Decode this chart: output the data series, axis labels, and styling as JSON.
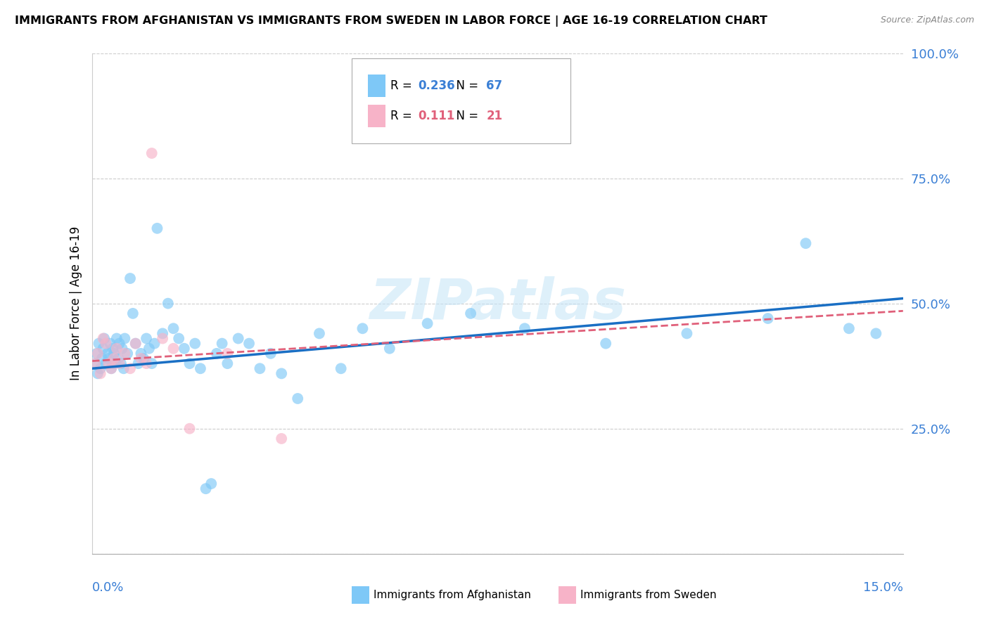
{
  "title": "IMMIGRANTS FROM AFGHANISTAN VS IMMIGRANTS FROM SWEDEN IN LABOR FORCE | AGE 16-19 CORRELATION CHART",
  "source": "Source: ZipAtlas.com",
  "ylabel": "In Labor Force | Age 16-19",
  "xlim": [
    0.0,
    15.0
  ],
  "ylim": [
    0.0,
    100.0
  ],
  "yticks": [
    0.0,
    25.0,
    50.0,
    75.0,
    100.0
  ],
  "ytick_labels": [
    "",
    "25.0%",
    "50.0%",
    "75.0%",
    "100.0%"
  ],
  "legend_r_afg": "0.236",
  "legend_n_afg": "67",
  "legend_r_swe": "0.111",
  "legend_n_swe": "21",
  "color_afg": "#7ec8f7",
  "color_swe": "#f7b3c8",
  "color_afg_line": "#1a6fc4",
  "color_swe_line": "#e0607a",
  "watermark": "ZIPatlas",
  "afg_x": [
    0.05,
    0.08,
    0.1,
    0.12,
    0.15,
    0.18,
    0.2,
    0.22,
    0.25,
    0.28,
    0.3,
    0.33,
    0.35,
    0.38,
    0.4,
    0.42,
    0.45,
    0.48,
    0.5,
    0.53,
    0.55,
    0.58,
    0.6,
    0.65,
    0.7,
    0.75,
    0.8,
    0.85,
    0.9,
    0.95,
    1.0,
    1.05,
    1.1,
    1.15,
    1.2,
    1.3,
    1.4,
    1.5,
    1.6,
    1.7,
    1.8,
    1.9,
    2.0,
    2.1,
    2.2,
    2.3,
    2.4,
    2.5,
    2.7,
    2.9,
    3.1,
    3.3,
    3.5,
    3.8,
    4.2,
    4.6,
    5.0,
    5.5,
    6.2,
    7.0,
    8.0,
    9.5,
    11.0,
    12.5,
    13.2,
    14.0,
    14.5
  ],
  "afg_y": [
    38,
    40,
    36,
    42,
    37,
    39,
    41,
    43,
    38,
    40,
    39,
    42,
    37,
    41,
    40,
    38,
    43,
    39,
    42,
    38,
    41,
    37,
    43,
    40,
    55,
    48,
    42,
    38,
    40,
    39,
    43,
    41,
    38,
    42,
    65,
    44,
    50,
    45,
    43,
    41,
    38,
    42,
    37,
    13,
    14,
    40,
    42,
    38,
    43,
    42,
    37,
    40,
    36,
    31,
    44,
    37,
    45,
    41,
    46,
    48,
    45,
    42,
    44,
    47,
    62,
    45,
    44
  ],
  "swe_x": [
    0.05,
    0.1,
    0.15,
    0.2,
    0.25,
    0.3,
    0.35,
    0.4,
    0.45,
    0.5,
    0.6,
    0.7,
    0.8,
    0.9,
    1.0,
    1.1,
    1.3,
    1.5,
    1.8,
    3.5,
    2.5
  ],
  "swe_y": [
    38,
    40,
    36,
    43,
    42,
    38,
    37,
    39,
    41,
    38,
    40,
    37,
    42,
    39,
    38,
    80,
    43,
    41,
    25,
    23,
    40
  ],
  "afg_line_x0": 0.0,
  "afg_line_x1": 15.0,
  "afg_line_y0": 37.0,
  "afg_line_y1": 51.0,
  "swe_line_x0": 0.0,
  "swe_line_x1": 15.0,
  "swe_line_y0": 38.5,
  "swe_line_y1": 48.5
}
